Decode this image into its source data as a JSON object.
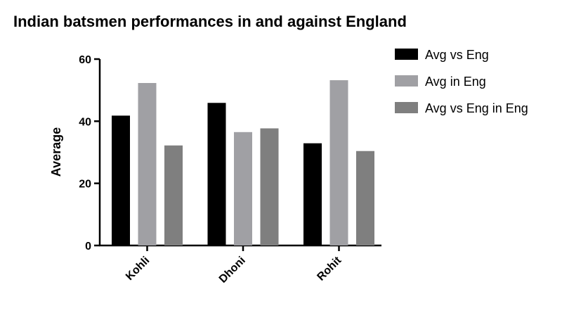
{
  "chart_data": {
    "type": "bar",
    "title": "Indian batsmen performances in and against England",
    "xlabel": "",
    "ylabel": "Average",
    "ylim": [
      0,
      60
    ],
    "yticks": [
      0,
      20,
      40,
      60
    ],
    "categories": [
      "Kohli",
      "Dhoni",
      "Rohit"
    ],
    "series": [
      {
        "name": "Avg vs Eng",
        "values": [
          41.8,
          45.9,
          32.9
        ],
        "color": "#000000"
      },
      {
        "name": "Avg in Eng",
        "values": [
          52.3,
          36.5,
          53.2
        ],
        "color": "#a0a0a4"
      },
      {
        "name": "Avg vs Eng in Eng",
        "values": [
          32.2,
          37.7,
          30.4
        ],
        "color": "#7f7f7f"
      }
    ],
    "legend_position": "top-right",
    "grid": false
  }
}
